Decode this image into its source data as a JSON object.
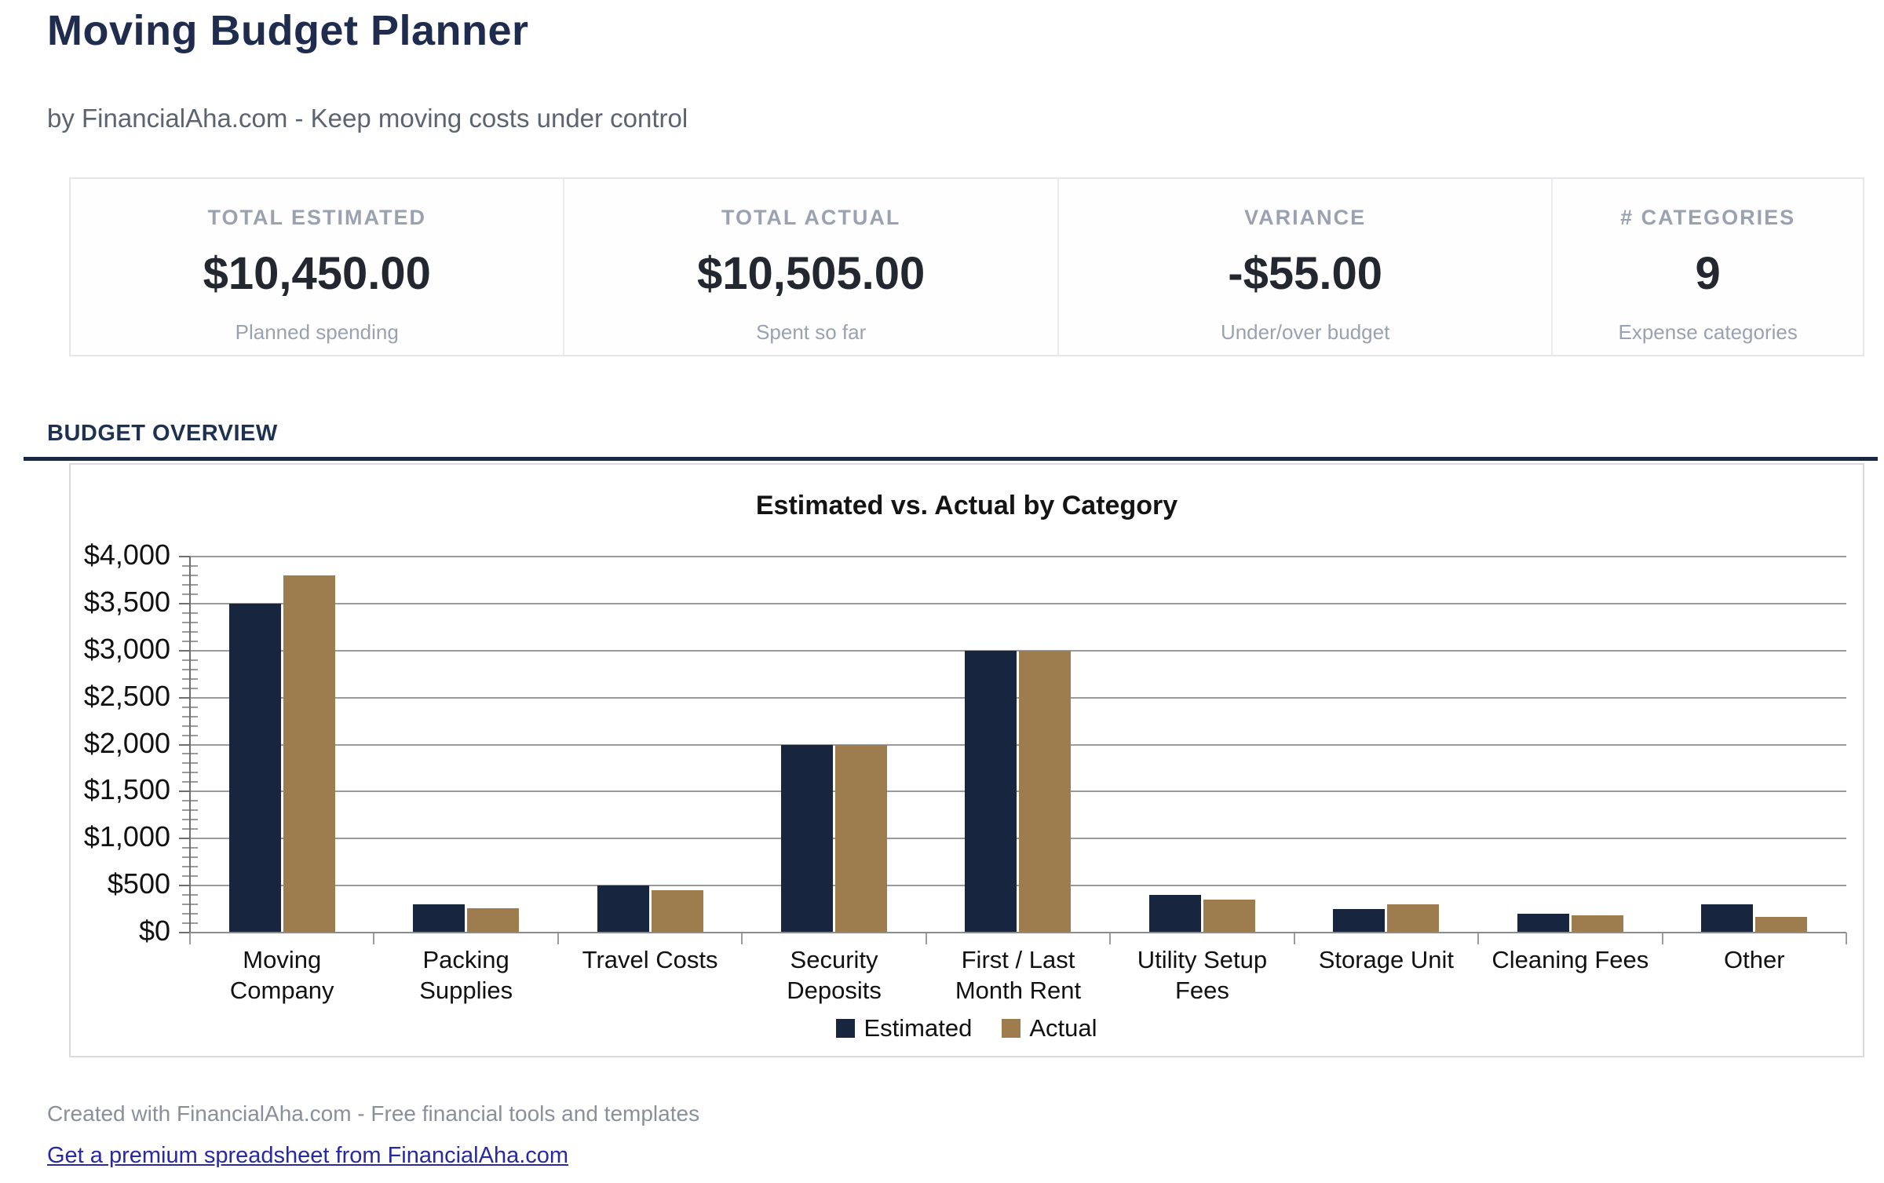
{
  "page": {
    "title": "Moving Budget Planner",
    "subtitle": "by FinancialAha.com - Keep moving costs under control"
  },
  "stats": {
    "cards": [
      {
        "label": "TOTAL ESTIMATED",
        "value": "$10,450.00",
        "sublabel": "Planned spending"
      },
      {
        "label": "TOTAL ACTUAL",
        "value": "$10,505.00",
        "sublabel": "Spent so far"
      },
      {
        "label": "VARIANCE",
        "value": "-$55.00",
        "sublabel": "Under/over budget"
      },
      {
        "label": "# CATEGORIES",
        "value": "9",
        "sublabel": "Expense categories"
      }
    ]
  },
  "section": {
    "heading": "BUDGET OVERVIEW"
  },
  "chart_data": {
    "type": "bar",
    "title": "Estimated vs. Actual by Category",
    "categories": [
      "Moving\nCompany",
      "Packing\nSupplies",
      "Travel Costs",
      "Security\nDeposits",
      "First / Last\nMonth Rent",
      "Utility Setup\nFees",
      "Storage Unit",
      "Cleaning Fees",
      "Other"
    ],
    "series": [
      {
        "name": "Estimated",
        "color": "#18253f",
        "values": [
          3500,
          300,
          500,
          2000,
          3000,
          400,
          250,
          200,
          300
        ]
      },
      {
        "name": "Actual",
        "color": "#9d7c4e",
        "values": [
          3800,
          260,
          450,
          2000,
          3000,
          350,
          300,
          180,
          165
        ]
      }
    ],
    "ylim": [
      0,
      4000
    ],
    "ytick_step": 500,
    "minor_tick_step": 100,
    "ytick_prefix": "$",
    "grid": true,
    "legend_position": "bottom"
  },
  "footer": {
    "credit": "Created with FinancialAha.com - Free financial tools and templates",
    "link_label": "Get a premium spreadsheet from FinancialAha.com"
  },
  "colors": {
    "title_navy": "#202c4e",
    "section_navy": "#1e3151",
    "rule_navy": "#1b2742",
    "estimated_bar": "#18253f",
    "actual_bar": "#9d7c4e",
    "gridline_gray": "#9b9b9b",
    "muted_label": "#9aa2b1",
    "link_blue": "#2929a3"
  }
}
